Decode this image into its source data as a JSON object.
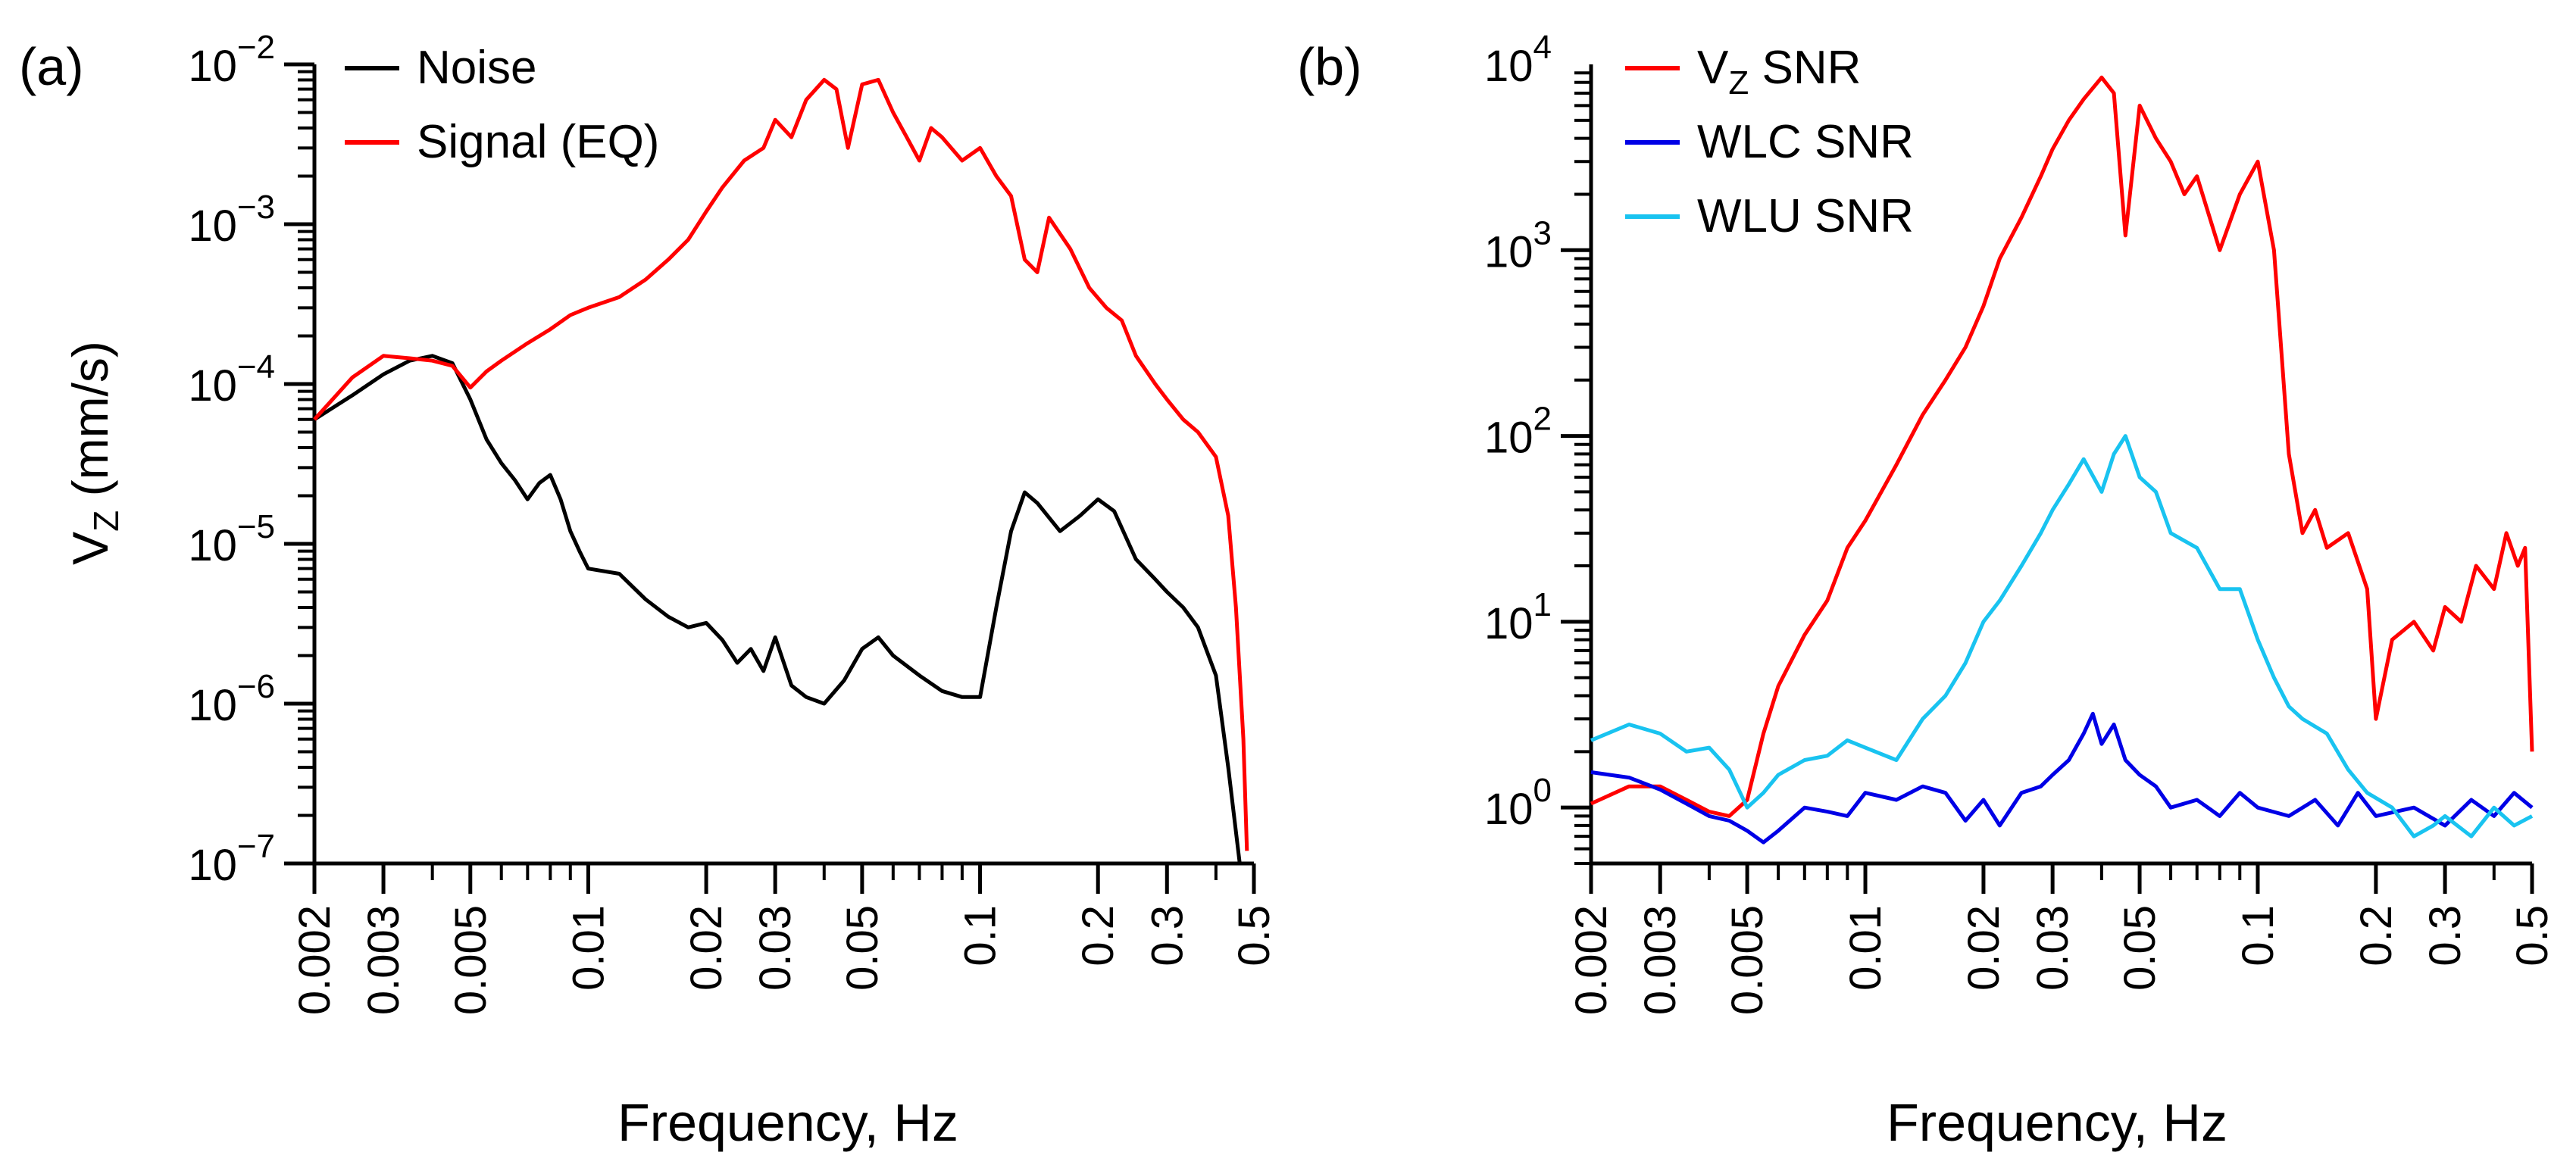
{
  "figure": {
    "panels": [
      "(a)",
      "(b)"
    ]
  },
  "chart_data": [
    {
      "type": "line",
      "panel_label": "(a)",
      "title": "",
      "xlabel": "Frequency, Hz",
      "ylabel": "V",
      "ylabel_sub": "Z",
      "ylabel_tail": " (mm/s)",
      "xscale": "log",
      "yscale": "log",
      "xlim": [
        0.002,
        0.5
      ],
      "ylim": [
        1e-07,
        0.01
      ],
      "x_ticks": [
        0.002,
        0.003,
        0.005,
        0.01,
        0.02,
        0.03,
        0.05,
        0.1,
        0.2,
        0.3,
        0.5
      ],
      "x_tick_labels": [
        "0.002",
        "0.003",
        "0.005",
        "0.01",
        "0.02",
        "0.03",
        "0.05",
        "0.1",
        "0.2",
        "0.3",
        "0.5"
      ],
      "y_ticks": [
        1e-07,
        1e-06,
        1e-05,
        0.0001,
        0.001,
        0.01
      ],
      "y_tick_labels": [
        {
          "base": "10",
          "exp": "−7"
        },
        {
          "base": "10",
          "exp": "−6"
        },
        {
          "base": "10",
          "exp": "−5"
        },
        {
          "base": "10",
          "exp": "−4"
        },
        {
          "base": "10",
          "exp": "−3"
        },
        {
          "base": "10",
          "exp": "−2"
        }
      ],
      "grid": false,
      "legend_position": "top-left",
      "series": [
        {
          "name": "Noise",
          "name_sub": "",
          "name_tail": "",
          "color": "#000000",
          "x": [
            0.002,
            0.0025,
            0.003,
            0.0035,
            0.004,
            0.0045,
            0.005,
            0.0055,
            0.006,
            0.0065,
            0.007,
            0.0075,
            0.008,
            0.0085,
            0.009,
            0.0095,
            0.01,
            0.012,
            0.014,
            0.016,
            0.018,
            0.02,
            0.022,
            0.024,
            0.026,
            0.028,
            0.03,
            0.033,
            0.036,
            0.04,
            0.045,
            0.05,
            0.055,
            0.06,
            0.07,
            0.08,
            0.09,
            0.1,
            0.11,
            0.12,
            0.13,
            0.14,
            0.16,
            0.18,
            0.2,
            0.22,
            0.25,
            0.28,
            0.3,
            0.33,
            0.36,
            0.4,
            0.43,
            0.46
          ],
          "y": [
            6e-05,
            8.5e-05,
            0.000115,
            0.00014,
            0.00015,
            0.000135,
            8e-05,
            4.5e-05,
            3.2e-05,
            2.5e-05,
            1.9e-05,
            2.4e-05,
            2.7e-05,
            1.9e-05,
            1.2e-05,
            9e-06,
            7e-06,
            6.5e-06,
            4.5e-06,
            3.5e-06,
            3e-06,
            3.2e-06,
            2.5e-06,
            1.8e-06,
            2.2e-06,
            1.6e-06,
            2.6e-06,
            1.3e-06,
            1.1e-06,
            1e-06,
            1.4e-06,
            2.2e-06,
            2.6e-06,
            2e-06,
            1.5e-06,
            1.2e-06,
            1.1e-06,
            1.1e-06,
            4e-06,
            1.2e-05,
            2.1e-05,
            1.8e-05,
            1.2e-05,
            1.5e-05,
            1.9e-05,
            1.6e-05,
            8e-06,
            6e-06,
            5e-06,
            4e-06,
            3e-06,
            1.5e-06,
            4e-07,
            1e-07
          ]
        },
        {
          "name": "Signal (EQ)",
          "name_sub": "",
          "name_tail": "",
          "color": "#ff0000",
          "x": [
            0.002,
            0.0025,
            0.003,
            0.0035,
            0.004,
            0.0045,
            0.005,
            0.0055,
            0.006,
            0.007,
            0.008,
            0.009,
            0.01,
            0.012,
            0.014,
            0.016,
            0.018,
            0.02,
            0.022,
            0.025,
            0.028,
            0.03,
            0.033,
            0.036,
            0.04,
            0.043,
            0.046,
            0.05,
            0.055,
            0.06,
            0.065,
            0.07,
            0.075,
            0.08,
            0.09,
            0.1,
            0.11,
            0.12,
            0.13,
            0.14,
            0.15,
            0.17,
            0.19,
            0.21,
            0.23,
            0.25,
            0.28,
            0.3,
            0.33,
            0.36,
            0.4,
            0.43,
            0.45,
            0.47,
            0.48
          ],
          "y": [
            6e-05,
            0.00011,
            0.00015,
            0.000145,
            0.00014,
            0.00013,
            9.5e-05,
            0.00012,
            0.00014,
            0.00018,
            0.00022,
            0.00027,
            0.0003,
            0.00035,
            0.00045,
            0.0006,
            0.0008,
            0.0012,
            0.0017,
            0.0025,
            0.003,
            0.0045,
            0.0035,
            0.006,
            0.008,
            0.007,
            0.003,
            0.0075,
            0.008,
            0.005,
            0.0035,
            0.0025,
            0.004,
            0.0035,
            0.0025,
            0.003,
            0.002,
            0.0015,
            0.0006,
            0.0005,
            0.0011,
            0.0007,
            0.0004,
            0.0003,
            0.00025,
            0.00015,
            0.0001,
            8e-05,
            6e-05,
            5e-05,
            3.5e-05,
            1.5e-05,
            4e-06,
            6e-07,
            1.2e-07
          ]
        }
      ]
    },
    {
      "type": "line",
      "panel_label": "(b)",
      "title": "",
      "xlabel": "Frequency, Hz",
      "ylabel": "",
      "ylabel_sub": "",
      "ylabel_tail": "",
      "xscale": "log",
      "yscale": "log",
      "xlim": [
        0.002,
        0.5
      ],
      "ylim": [
        0.5,
        10000
      ],
      "x_ticks": [
        0.002,
        0.003,
        0.005,
        0.01,
        0.02,
        0.03,
        0.05,
        0.1,
        0.2,
        0.3,
        0.5
      ],
      "x_tick_labels": [
        "0.002",
        "0.003",
        "0.005",
        "0.01",
        "0.02",
        "0.03",
        "0.05",
        "0.1",
        "0.2",
        "0.3",
        "0.5"
      ],
      "y_ticks": [
        1,
        10,
        100,
        1000,
        10000
      ],
      "y_tick_labels": [
        {
          "base": "10",
          "exp": "0"
        },
        {
          "base": "10",
          "exp": "1"
        },
        {
          "base": "10",
          "exp": "2"
        },
        {
          "base": "10",
          "exp": "3"
        },
        {
          "base": "10",
          "exp": "4"
        }
      ],
      "grid": false,
      "legend_position": "top-left",
      "series": [
        {
          "name": "V",
          "name_sub": "Z",
          "name_tail": " SNR",
          "color": "#ff0000",
          "x": [
            0.002,
            0.0025,
            0.003,
            0.0035,
            0.004,
            0.0045,
            0.005,
            0.0055,
            0.006,
            0.007,
            0.008,
            0.009,
            0.01,
            0.012,
            0.014,
            0.016,
            0.018,
            0.02,
            0.022,
            0.025,
            0.028,
            0.03,
            0.033,
            0.036,
            0.04,
            0.043,
            0.046,
            0.05,
            0.055,
            0.06,
            0.065,
            0.07,
            0.08,
            0.09,
            0.1,
            0.11,
            0.12,
            0.13,
            0.14,
            0.15,
            0.17,
            0.19,
            0.2,
            0.22,
            0.25,
            0.28,
            0.3,
            0.33,
            0.36,
            0.4,
            0.43,
            0.46,
            0.48,
            0.5
          ],
          "y": [
            1.05,
            1.3,
            1.3,
            1.1,
            0.95,
            0.9,
            1.1,
            2.5,
            4.5,
            8.5,
            13,
            25,
            35,
            70,
            130,
            200,
            300,
            500,
            900,
            1500,
            2500,
            3500,
            5000,
            6500,
            8500,
            7000,
            1200,
            6000,
            4000,
            3000,
            2000,
            2500,
            1000,
            2000,
            3000,
            1000,
            80,
            30,
            40,
            25,
            30,
            15,
            3,
            8,
            10,
            7,
            12,
            10,
            20,
            15,
            30,
            20,
            25,
            2
          ]
        },
        {
          "name": "WLC SNR",
          "name_sub": "",
          "name_tail": "",
          "color": "#0000e6",
          "x": [
            0.002,
            0.0025,
            0.003,
            0.0035,
            0.004,
            0.0045,
            0.005,
            0.0055,
            0.006,
            0.007,
            0.008,
            0.009,
            0.01,
            0.012,
            0.014,
            0.016,
            0.018,
            0.02,
            0.022,
            0.025,
            0.028,
            0.03,
            0.033,
            0.036,
            0.038,
            0.04,
            0.043,
            0.046,
            0.05,
            0.055,
            0.06,
            0.07,
            0.08,
            0.09,
            0.1,
            0.12,
            0.14,
            0.16,
            0.18,
            0.2,
            0.25,
            0.3,
            0.35,
            0.4,
            0.45,
            0.5
          ],
          "y": [
            1.55,
            1.45,
            1.25,
            1.05,
            0.9,
            0.85,
            0.75,
            0.65,
            0.75,
            1.0,
            0.95,
            0.9,
            1.2,
            1.1,
            1.3,
            1.2,
            0.85,
            1.1,
            0.8,
            1.2,
            1.3,
            1.5,
            1.8,
            2.5,
            3.2,
            2.2,
            2.8,
            1.8,
            1.5,
            1.3,
            1.0,
            1.1,
            0.9,
            1.2,
            1.0,
            0.9,
            1.1,
            0.8,
            1.2,
            0.9,
            1.0,
            0.8,
            1.1,
            0.9,
            1.2,
            1.0
          ]
        },
        {
          "name": "WLU SNR",
          "name_sub": "",
          "name_tail": "",
          "color": "#19c3f0",
          "x": [
            0.002,
            0.0025,
            0.003,
            0.0035,
            0.004,
            0.0045,
            0.005,
            0.0055,
            0.006,
            0.007,
            0.008,
            0.009,
            0.01,
            0.012,
            0.014,
            0.016,
            0.018,
            0.02,
            0.022,
            0.025,
            0.028,
            0.03,
            0.033,
            0.036,
            0.04,
            0.043,
            0.046,
            0.05,
            0.055,
            0.06,
            0.07,
            0.08,
            0.09,
            0.1,
            0.11,
            0.12,
            0.13,
            0.15,
            0.17,
            0.19,
            0.22,
            0.25,
            0.28,
            0.3,
            0.35,
            0.4,
            0.45,
            0.5
          ],
          "y": [
            2.3,
            2.8,
            2.5,
            2.0,
            2.1,
            1.6,
            1.0,
            1.2,
            1.5,
            1.8,
            1.9,
            2.3,
            2.1,
            1.8,
            3,
            4,
            6,
            10,
            13,
            20,
            30,
            40,
            55,
            75,
            50,
            80,
            100,
            60,
            50,
            30,
            25,
            15,
            15,
            8,
            5,
            3.5,
            3,
            2.5,
            1.6,
            1.2,
            1.0,
            0.7,
            0.8,
            0.9,
            0.7,
            1.0,
            0.8,
            0.9
          ]
        }
      ]
    }
  ]
}
